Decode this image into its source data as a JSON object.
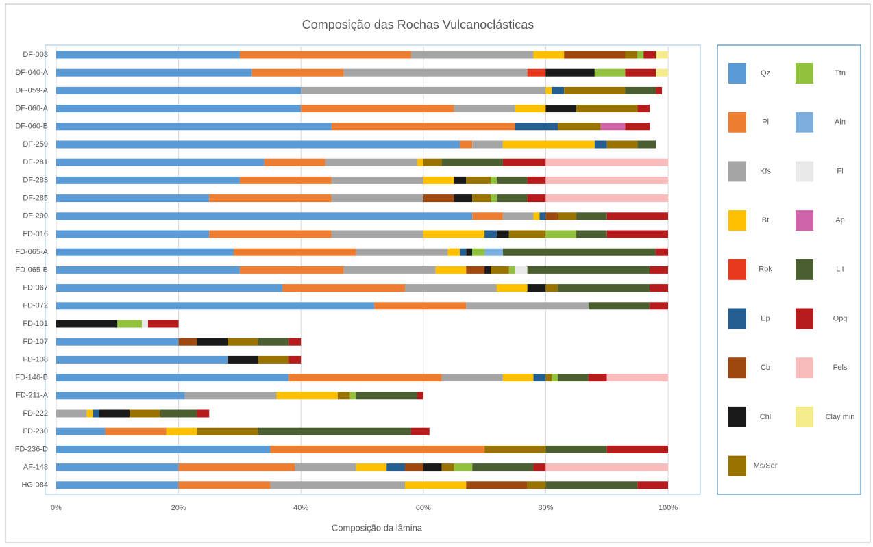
{
  "chart_data": {
    "type": "bar",
    "orientation": "horizontal",
    "stacked": true,
    "grid": true,
    "title": "Composição das Rochas Vulcanoclásticas",
    "x_label": "Composição da lâmina",
    "categories": [
      "DF-003",
      "DF-040-A",
      "DF-059-A",
      "DF-060-A",
      "DF-060-B",
      "DF-259",
      "DF-281",
      "DF-283",
      "DF-285",
      "DF-290",
      "FD-016",
      "FD-065-A",
      "FD-065-B",
      "FD-067",
      "FD-072",
      "FD-101",
      "FD-107",
      "FD-108",
      "FD-146-B",
      "FD-211-A",
      "FD-222",
      "FD-230",
      "FD-236-D",
      "AF-148",
      "HG-084"
    ],
    "xlim": [
      0,
      100
    ],
    "xticks": [
      {
        "value": 0,
        "label": "0%"
      },
      {
        "value": 20,
        "label": "20%"
      },
      {
        "value": 40,
        "label": "40%"
      },
      {
        "value": 60,
        "label": "60%"
      },
      {
        "value": 80,
        "label": "80%"
      },
      {
        "value": 100,
        "label": "100%"
      }
    ],
    "series": [
      {
        "name": "Qz",
        "color": "#5b9bd5",
        "values": [
          30,
          32,
          40,
          40,
          45,
          66,
          34,
          30,
          25,
          68,
          25,
          29,
          30,
          37,
          52,
          null,
          20,
          28,
          38,
          21,
          null,
          8,
          35,
          20,
          20
        ]
      },
      {
        "name": "Pl",
        "color": "#ed7d31",
        "values": [
          28,
          15,
          null,
          25,
          30,
          2,
          10,
          15,
          20,
          5,
          20,
          20,
          17,
          20,
          15,
          null,
          null,
          null,
          25,
          null,
          null,
          10,
          35,
          19,
          15
        ]
      },
      {
        "name": "Kfs",
        "color": "#a5a5a5",
        "values": [
          20,
          30,
          40,
          10,
          null,
          5,
          15,
          15,
          15,
          5,
          15,
          15,
          15,
          15,
          20,
          null,
          null,
          null,
          10,
          15,
          5,
          null,
          null,
          10,
          22
        ]
      },
      {
        "name": "Bt",
        "color": "#ffc000",
        "values": [
          5,
          null,
          1,
          5,
          null,
          15,
          1,
          5,
          null,
          1,
          10,
          2,
          5,
          5,
          null,
          null,
          null,
          null,
          5,
          10,
          1,
          5,
          null,
          5,
          10
        ]
      },
      {
        "name": "Rbk",
        "color": "#e8391f",
        "values": [
          null,
          3,
          null,
          null,
          null,
          null,
          null,
          null,
          null,
          null,
          null,
          null,
          null,
          null,
          null,
          null,
          null,
          null,
          null,
          null,
          null,
          null,
          null,
          null,
          null
        ]
      },
      {
        "name": "Ep",
        "color": "#255e91",
        "values": [
          null,
          null,
          2,
          null,
          7,
          2,
          null,
          null,
          null,
          1,
          2,
          1,
          null,
          null,
          null,
          null,
          null,
          null,
          2,
          null,
          1,
          null,
          null,
          3,
          null
        ]
      },
      {
        "name": "Cb",
        "color": "#9e480e",
        "values": [
          10,
          null,
          null,
          null,
          null,
          null,
          null,
          null,
          5,
          2,
          null,
          null,
          3,
          null,
          null,
          null,
          3,
          null,
          null,
          null,
          null,
          null,
          null,
          3,
          10
        ]
      },
      {
        "name": "Chl",
        "color": "#1a1a1a",
        "values": [
          null,
          8,
          null,
          5,
          null,
          null,
          null,
          2,
          3,
          null,
          2,
          1,
          1,
          3,
          null,
          10,
          5,
          5,
          null,
          null,
          5,
          null,
          null,
          3,
          null
        ]
      },
      {
        "name": "Ms/Ser",
        "color": "#997300",
        "values": [
          2,
          null,
          10,
          10,
          7,
          5,
          3,
          4,
          3,
          3,
          6,
          null,
          3,
          2,
          null,
          null,
          5,
          5,
          1,
          2,
          5,
          10,
          10,
          2,
          3
        ]
      },
      {
        "name": "Ttn",
        "color": "#92c13e",
        "values": [
          1,
          5,
          null,
          null,
          null,
          null,
          null,
          1,
          1,
          null,
          5,
          2,
          1,
          null,
          null,
          4,
          null,
          null,
          1,
          1,
          null,
          null,
          null,
          3,
          null
        ]
      },
      {
        "name": "Aln",
        "color": "#7cafdd",
        "values": [
          null,
          null,
          null,
          null,
          null,
          null,
          null,
          null,
          null,
          null,
          null,
          3,
          null,
          null,
          null,
          null,
          null,
          null,
          null,
          null,
          null,
          null,
          null,
          null,
          null
        ]
      },
      {
        "name": "Fl",
        "color": "#e8e8e8",
        "values": [
          null,
          null,
          null,
          null,
          null,
          null,
          null,
          null,
          null,
          null,
          null,
          null,
          2,
          null,
          null,
          1,
          null,
          null,
          null,
          null,
          null,
          null,
          null,
          null,
          null
        ]
      },
      {
        "name": "Ap",
        "color": "#d064a8",
        "values": [
          null,
          null,
          null,
          null,
          4,
          null,
          null,
          null,
          null,
          null,
          null,
          null,
          null,
          null,
          null,
          null,
          null,
          null,
          null,
          null,
          null,
          null,
          null,
          null,
          null
        ]
      },
      {
        "name": "Lit",
        "color": "#4b5e2f",
        "values": [
          null,
          null,
          5,
          null,
          null,
          3,
          10,
          5,
          5,
          5,
          5,
          25,
          20,
          15,
          10,
          null,
          5,
          null,
          5,
          10,
          6,
          25,
          10,
          10,
          15
        ]
      },
      {
        "name": "Opq",
        "color": "#b71c1c",
        "values": [
          2,
          5,
          1,
          2,
          4,
          null,
          7,
          3,
          3,
          10,
          10,
          2,
          3,
          3,
          3,
          5,
          2,
          2,
          3,
          1,
          2,
          3,
          10,
          2,
          5
        ]
      },
      {
        "name": "Fels",
        "color": "#f8bcbc",
        "values": [
          null,
          null,
          null,
          null,
          null,
          null,
          20,
          20,
          20,
          null,
          null,
          null,
          null,
          null,
          null,
          null,
          null,
          null,
          10,
          null,
          null,
          null,
          null,
          20,
          null
        ]
      },
      {
        "name": "Clay min",
        "color": "#f5ec8c",
        "values": [
          2,
          2,
          null,
          null,
          null,
          null,
          null,
          null,
          null,
          null,
          null,
          null,
          null,
          null,
          null,
          null,
          null,
          null,
          null,
          null,
          null,
          null,
          null,
          null,
          null
        ]
      }
    ]
  }
}
